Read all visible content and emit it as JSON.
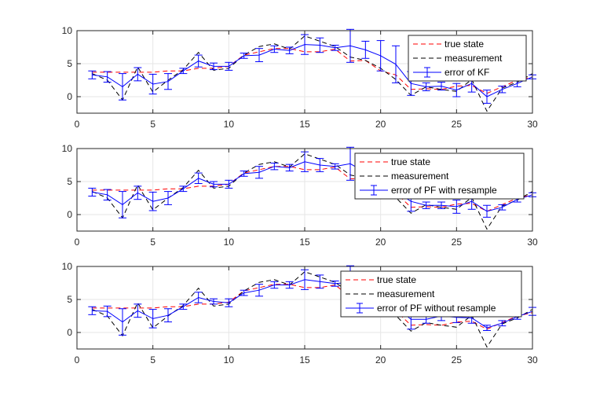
{
  "chart_data": [
    {
      "type": "line",
      "xlim": [
        0,
        30
      ],
      "ylim": [
        -2.5,
        10
      ],
      "x_ticks": [
        0,
        5,
        10,
        15,
        20,
        25,
        30
      ],
      "y_ticks": [
        0,
        5,
        10
      ],
      "grid": true,
      "legend_position": "top-right",
      "x": [
        1,
        2,
        3,
        4,
        5,
        6,
        7,
        8,
        9,
        10,
        11,
        12,
        13,
        14,
        15,
        16,
        17,
        18,
        19,
        20,
        21,
        22,
        23,
        24,
        25,
        26,
        27,
        28,
        29,
        30
      ],
      "series": [
        {
          "name": "true state",
          "color": "#ff0000",
          "dash": "dashed",
          "values": [
            3.7,
            3.7,
            3.7,
            3.7,
            3.7,
            3.9,
            3.9,
            4.3,
            4.3,
            4.6,
            6.3,
            6.8,
            7.3,
            7.3,
            6.8,
            6.8,
            7.2,
            5.4,
            5.5,
            3.9,
            3.3,
            1.1,
            1.2,
            1.1,
            1.6,
            1.7,
            0.5,
            1.5,
            2.5,
            3.0
          ]
        },
        {
          "name": "measurement",
          "color": "#000000",
          "dash": "dashed",
          "values": [
            3.5,
            2.5,
            -0.5,
            4.5,
            0.7,
            2.5,
            4.1,
            6.7,
            4.0,
            4.3,
            6.3,
            7.6,
            8.0,
            7.2,
            9.2,
            8.4,
            7.6,
            6.0,
            5.5,
            4.3,
            2.6,
            0.2,
            1.5,
            1.1,
            0.8,
            2.6,
            -2.2,
            1.3,
            2.2,
            3.5
          ]
        },
        {
          "name": "error of KF",
          "color": "#0000ff",
          "dash": "solid",
          "errorbars": true,
          "values": [
            3.3,
            3.0,
            1.5,
            3.4,
            1.9,
            2.3,
            3.9,
            5.4,
            4.6,
            4.6,
            6.2,
            6.3,
            7.2,
            7.0,
            7.9,
            7.8,
            7.4,
            7.7,
            7.1,
            6.2,
            4.9,
            2.0,
            1.5,
            1.6,
            1.0,
            2.0,
            0.0,
            1.1,
            2.0,
            3.0
          ],
          "errors": [
            0.6,
            0.8,
            2.0,
            1.0,
            1.5,
            1.2,
            0.4,
            0.9,
            0.5,
            0.6,
            0.4,
            1.0,
            0.5,
            0.5,
            1.5,
            1.1,
            0.4,
            2.5,
            1.3,
            2.3,
            2.8,
            1.8,
            0.6,
            0.6,
            1.0,
            1.3,
            1.0,
            0.5,
            0.5,
            0.3
          ]
        }
      ]
    },
    {
      "type": "line",
      "xlim": [
        0,
        30
      ],
      "ylim": [
        -2.5,
        10
      ],
      "x_ticks": [
        0,
        5,
        10,
        15,
        20,
        25,
        30
      ],
      "y_ticks": [
        0,
        5,
        10
      ],
      "grid": true,
      "legend_position": "top-right",
      "x": [
        1,
        2,
        3,
        4,
        5,
        6,
        7,
        8,
        9,
        10,
        11,
        12,
        13,
        14,
        15,
        16,
        17,
        18,
        19,
        20,
        21,
        22,
        23,
        24,
        25,
        26,
        27,
        28,
        29,
        30
      ],
      "series": [
        {
          "name": "true state",
          "color": "#ff0000",
          "dash": "dashed",
          "values": [
            3.7,
            3.7,
            3.7,
            3.7,
            3.7,
            3.9,
            3.9,
            4.3,
            4.3,
            4.6,
            6.3,
            6.8,
            7.3,
            7.3,
            6.8,
            6.8,
            7.2,
            5.4,
            5.5,
            3.9,
            3.3,
            1.1,
            1.2,
            1.1,
            1.6,
            1.7,
            0.5,
            1.5,
            2.5,
            3.0
          ]
        },
        {
          "name": "measurement",
          "color": "#000000",
          "dash": "dashed",
          "values": [
            3.5,
            2.5,
            -0.5,
            4.5,
            0.7,
            2.5,
            4.1,
            6.7,
            4.0,
            4.3,
            6.3,
            7.6,
            8.0,
            7.2,
            9.2,
            8.4,
            7.6,
            6.0,
            5.5,
            4.3,
            2.6,
            0.2,
            1.5,
            1.1,
            0.8,
            2.6,
            -2.2,
            1.3,
            2.2,
            3.5
          ]
        },
        {
          "name": "error of PF with resample",
          "color": "#0000ff",
          "dash": "solid",
          "errorbars": true,
          "values": [
            3.4,
            3.0,
            1.5,
            3.3,
            2.0,
            2.5,
            3.9,
            5.5,
            4.6,
            4.6,
            6.2,
            6.4,
            7.3,
            7.1,
            8.0,
            7.5,
            7.3,
            7.7,
            6.4,
            4.8,
            3.5,
            2.0,
            1.4,
            1.4,
            1.2,
            2.0,
            0.5,
            1.1,
            2.3,
            3.0
          ],
          "errors": [
            0.6,
            0.8,
            2.0,
            1.0,
            1.4,
            1.0,
            0.4,
            0.8,
            0.4,
            0.6,
            0.4,
            0.9,
            0.5,
            0.5,
            1.5,
            1.0,
            0.4,
            2.5,
            0.8,
            1.0,
            0.8,
            1.5,
            0.5,
            0.5,
            1.0,
            1.2,
            0.9,
            0.4,
            0.4,
            0.3
          ]
        }
      ]
    },
    {
      "type": "line",
      "xlim": [
        0,
        30
      ],
      "ylim": [
        -2.5,
        10
      ],
      "x_ticks": [
        0,
        5,
        10,
        15,
        20,
        25,
        30
      ],
      "y_ticks": [
        0,
        5,
        10
      ],
      "grid": true,
      "legend_position": "top-right",
      "x": [
        1,
        2,
        3,
        4,
        5,
        6,
        7,
        8,
        9,
        10,
        11,
        12,
        13,
        14,
        15,
        16,
        17,
        18,
        19,
        20,
        21,
        22,
        23,
        24,
        25,
        26,
        27,
        28,
        29,
        30
      ],
      "series": [
        {
          "name": "true state",
          "color": "#ff0000",
          "dash": "dashed",
          "values": [
            3.7,
            3.7,
            3.7,
            3.7,
            3.7,
            3.9,
            3.9,
            4.3,
            4.3,
            4.6,
            6.3,
            6.8,
            7.3,
            7.3,
            6.8,
            6.8,
            7.2,
            5.4,
            5.5,
            3.9,
            3.3,
            1.1,
            1.2,
            1.1,
            1.6,
            1.7,
            0.5,
            1.5,
            2.5,
            3.0
          ]
        },
        {
          "name": "measurement",
          "color": "#000000",
          "dash": "dashed",
          "values": [
            3.5,
            2.5,
            -0.5,
            4.5,
            0.7,
            2.5,
            4.1,
            6.7,
            4.0,
            4.3,
            6.3,
            7.6,
            8.0,
            7.2,
            9.2,
            8.4,
            7.6,
            6.0,
            5.5,
            4.3,
            2.6,
            0.2,
            1.5,
            1.1,
            0.8,
            2.6,
            -2.2,
            1.3,
            2.2,
            3.5
          ]
        },
        {
          "name": "error of PF without resample",
          "color": "#0000ff",
          "dash": "solid",
          "errorbars": true,
          "values": [
            3.3,
            3.2,
            1.6,
            3.3,
            2.1,
            2.6,
            3.9,
            5.3,
            4.7,
            4.5,
            6.0,
            6.4,
            7.2,
            7.2,
            8.0,
            7.7,
            7.4,
            7.6,
            6.5,
            5.1,
            3.9,
            2.0,
            2.0,
            2.5,
            2.3,
            2.2,
            0.7,
            1.4,
            2.4,
            3.2
          ],
          "errors": [
            0.6,
            0.8,
            2.0,
            1.0,
            1.4,
            1.0,
            0.4,
            0.8,
            0.4,
            0.6,
            0.4,
            0.9,
            0.5,
            0.5,
            1.5,
            1.0,
            0.4,
            2.5,
            0.9,
            1.0,
            1.0,
            1.5,
            0.6,
            0.7,
            0.8,
            0.8,
            0.4,
            0.4,
            0.4,
            0.6
          ]
        }
      ]
    }
  ]
}
